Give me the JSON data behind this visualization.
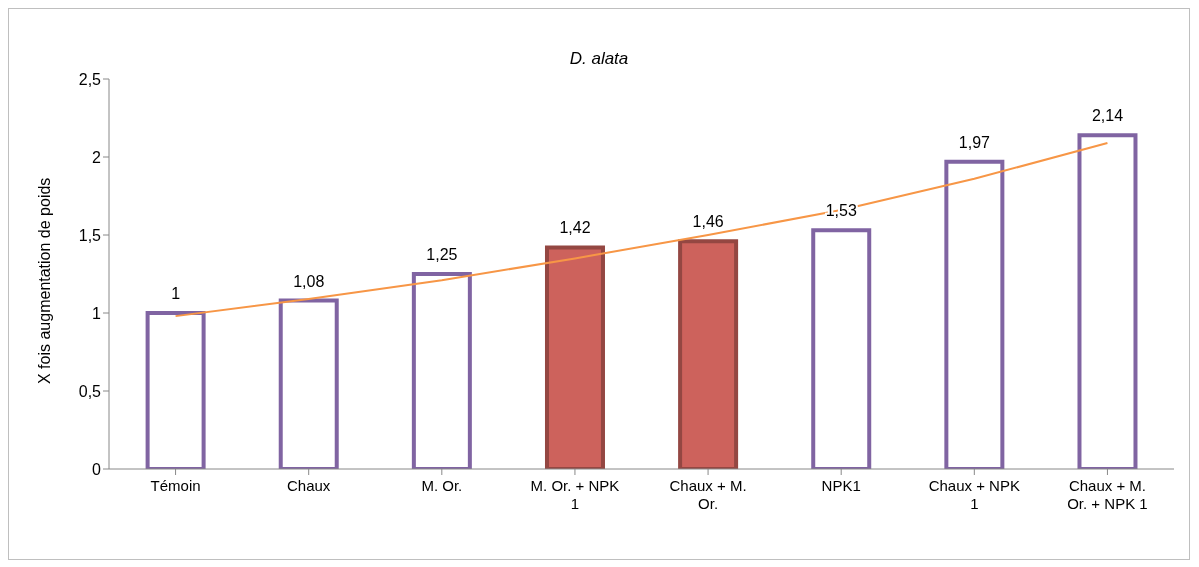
{
  "chart_data": {
    "type": "bar",
    "title": "D. alata",
    "ylabel": "X fois augmentation de poids",
    "categories": [
      "Témoin",
      "Chaux",
      "M. Or.",
      "M. Or.  + NPK 1",
      "Chaux + M. Or.",
      "NPK1",
      "Chaux + NPK 1",
      "Chaux + M. Or.  + NPK 1"
    ],
    "series": [
      {
        "color": "#8064a2",
        "colors": [
          "#ffffff",
          "#ffffff",
          "#ffffff",
          "#cd625c",
          "#cd625c",
          "#ffffff",
          "#ffffff",
          "#ffffff"
        ],
        "values": [
          1,
          1.08,
          1.25,
          1.42,
          1.46,
          1.53,
          1.97,
          2.14
        ],
        "value_labels": [
          "1",
          "1,08",
          "1,25",
          "1,42",
          "1,46",
          "1,53",
          "1,97",
          "2,14"
        ]
      },
      {
        "type": "line",
        "color": "#f79646",
        "x": [
          "Témoin",
          "Chaux",
          "M. Or.",
          "M. Or.  + NPK 1",
          "Chaux + M. Or.",
          "NPK1",
          "Chaux + NPK 1",
          "Chaux + M. Or.  + NPK 1"
        ],
        "values": [
          0.98,
          1.09,
          1.21,
          1.35,
          1.5,
          1.66,
          1.86,
          2.09
        ]
      }
    ],
    "ylim": [
      0,
      2.5
    ],
    "yticks": [
      0,
      {
        "value": 0.5,
        "label": "0,5"
      },
      1,
      {
        "value": 1.5,
        "label": "1,5"
      },
      2,
      {
        "value": 2.5,
        "label": "2,5"
      }
    ],
    "grid": false,
    "legend": false,
    "marker": "none",
    "line_style": "solid"
  }
}
